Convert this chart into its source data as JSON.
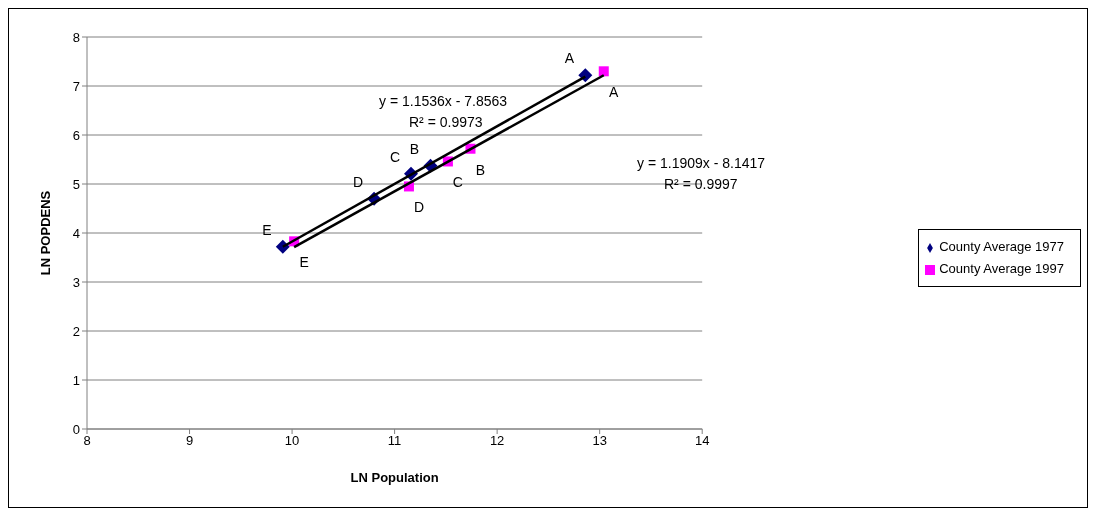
{
  "chart_data": {
    "type": "scatter",
    "xlabel": "LN Population",
    "ylabel": "LN POPDENS",
    "xlim": [
      8,
      14
    ],
    "xticks": [
      8,
      9,
      10,
      11,
      12,
      13,
      14
    ],
    "ylim": [
      0,
      8
    ],
    "yticks": [
      0,
      1,
      2,
      3,
      4,
      5,
      6,
      7,
      8
    ],
    "grid": "y",
    "legend": "right",
    "series": [
      {
        "name": "County Average 1977",
        "color": "#000080",
        "marker": "diamond",
        "x": [
          12.86,
          11.35,
          11.16,
          10.8,
          9.91
        ],
        "values": [
          7.22,
          5.37,
          5.21,
          4.7,
          3.72
        ]
      },
      {
        "name": "County Average 1997",
        "color": "#ff00ff",
        "marker": "square",
        "x": [
          13.04,
          11.74,
          11.52,
          11.14,
          10.02
        ],
        "values": [
          7.3,
          5.72,
          5.46,
          4.95,
          3.83
        ]
      },
      {
        "type": "line",
        "color": "#000000",
        "marker": "none",
        "x": [
          9.91,
          12.86
        ],
        "values": [
          3.72,
          7.19
        ]
      },
      {
        "type": "line",
        "color": "#000000",
        "marker": "none",
        "x": [
          10.02,
          13.04
        ],
        "values": [
          3.71,
          7.22
        ]
      }
    ],
    "annotations": [
      "y = 1.1536x - 7.8563",
      "R² = 0.9973",
      "y = 1.1909x - 8.1417",
      "R² = 0.9997",
      {
        "text": "A",
        "x": 12.86,
        "y": 7.22
      },
      {
        "text": "B",
        "x": 11.35,
        "y": 5.37
      },
      {
        "text": "C",
        "x": 11.16,
        "y": 5.21
      },
      {
        "text": "D",
        "x": 10.8,
        "y": 4.7
      },
      {
        "text": "E",
        "x": 9.91,
        "y": 3.72
      },
      {
        "text": "A",
        "x": 13.04,
        "y": 7.3
      },
      {
        "text": "B",
        "x": 11.74,
        "y": 5.72
      },
      {
        "text": "C",
        "x": 11.52,
        "y": 5.46
      },
      {
        "text": "D",
        "x": 11.14,
        "y": 4.95
      },
      {
        "text": "E",
        "x": 10.02,
        "y": 3.83
      }
    ]
  }
}
